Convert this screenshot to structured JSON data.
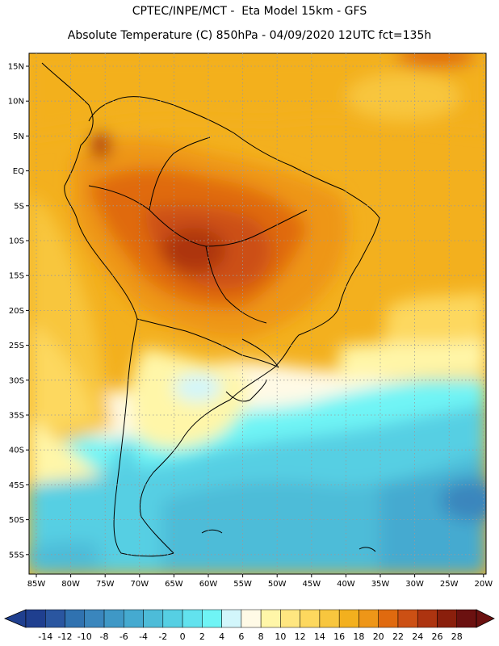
{
  "title_line1": "CPTEC/INPE/MCT -  Eta Model 15km - GFS",
  "title_line2": "Absolute Temperature (C) 850hPa - 04/09/2020 12UTC fct=135h",
  "lat_ticks": [
    "15N",
    "10N",
    "5N",
    "EQ",
    "5S",
    "10S",
    "15S",
    "20S",
    "25S",
    "30S",
    "35S",
    "40S",
    "45S",
    "50S",
    "55S"
  ],
  "lon_ticks": [
    "85W",
    "80W",
    "75W",
    "70W",
    "65W",
    "60W",
    "55W",
    "50W",
    "45W",
    "40W",
    "35W",
    "30W",
    "25W",
    "20W"
  ],
  "colorbar": {
    "labels": [
      "-14",
      "-12",
      "-10",
      "-8",
      "-6",
      "-4",
      "-2",
      "0",
      "2",
      "4",
      "6",
      "8",
      "10",
      "12",
      "14",
      "16",
      "18",
      "20",
      "22",
      "24",
      "26",
      "28"
    ],
    "colors": [
      "#1f3f8f",
      "#2a56a0",
      "#3072b0",
      "#3a86bd",
      "#3f98c6",
      "#45aad0",
      "#4dbcd8",
      "#56cfe3",
      "#62e2ee",
      "#6ff4f5",
      "#d2f6fb",
      "#fffae6",
      "#fff6a8",
      "#ffe680",
      "#fdd85e",
      "#f8c63e",
      "#f3b01e",
      "#ee9618",
      "#e06a0f",
      "#cc5014",
      "#ad3410",
      "#8a1f0c",
      "#6b1110"
    ]
  }
}
